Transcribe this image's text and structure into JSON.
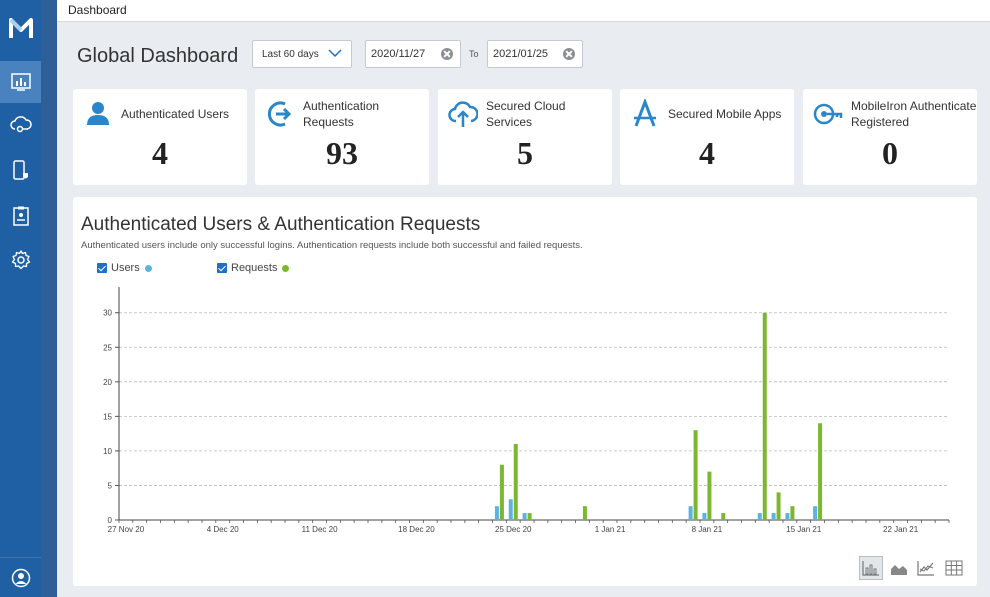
{
  "topbar": {
    "breadcrumb": "Dashboard"
  },
  "header": {
    "title": "Global Dashboard",
    "range_label": "Last 60 days",
    "date_from": "2020/11/27",
    "to_label": "To",
    "date_to": "2021/01/25"
  },
  "sidebar": {
    "items": [
      {
        "name": "dashboard",
        "icon": "bar-chart-icon",
        "active": true
      },
      {
        "name": "cloud-access",
        "icon": "cloud-key-icon"
      },
      {
        "name": "devices",
        "icon": "mobile-shield-icon"
      },
      {
        "name": "policies",
        "icon": "clipboard-icon"
      },
      {
        "name": "settings",
        "icon": "gear-icon"
      }
    ],
    "bottom": {
      "icon": "user-icon"
    }
  },
  "cards": [
    {
      "label": "Authenticated Users",
      "value": "4",
      "icon": "user-icon"
    },
    {
      "label": "Authentication Requests",
      "value": "93",
      "icon": "login-arrow-icon"
    },
    {
      "label": "Secured Cloud Services",
      "value": "5",
      "icon": "cloud-upload-icon"
    },
    {
      "label": "Secured Mobile Apps",
      "value": "4",
      "icon": "app-store-icon"
    },
    {
      "label": "MobileIron Authenticate Registered",
      "value": "0",
      "icon": "key-icon"
    }
  ],
  "panel": {
    "title": "Authenticated Users & Authentication Requests",
    "subtitle": "Authenticated users include only successful logins. Authentication requests include both successful and failed requests.",
    "legend": [
      {
        "label": "Users",
        "color": "#5ab4e0"
      },
      {
        "label": "Requests",
        "color": "#7cb82f"
      }
    ],
    "view_buttons": [
      "bar-chart-view-icon",
      "area-chart-view-icon",
      "line-chart-view-icon",
      "table-view-icon"
    ]
  },
  "chart_data": {
    "type": "bar",
    "x_ticks": [
      "27 Nov 20",
      "4 Dec 20",
      "11 Dec 20",
      "18 Dec 20",
      "25 Dec 20",
      "1 Jan 21",
      "8 Jan 21",
      "15 Jan 21",
      "22 Jan 21"
    ],
    "y_ticks": [
      0,
      5,
      10,
      15,
      20,
      25,
      30
    ],
    "ylim": [
      0,
      33
    ],
    "grid": true,
    "start_date": "2020-11-27",
    "days": 60,
    "series": [
      {
        "name": "Users",
        "color": "#5ab4e0",
        "points": [
          [
            "2020-12-24",
            2
          ],
          [
            "2020-12-25",
            3
          ],
          [
            "2020-12-26",
            1
          ],
          [
            "2021-01-07",
            2
          ],
          [
            "2021-01-08",
            1
          ],
          [
            "2021-01-12",
            1
          ],
          [
            "2021-01-13",
            1
          ],
          [
            "2021-01-14",
            1
          ],
          [
            "2021-01-16",
            2
          ]
        ]
      },
      {
        "name": "Requests",
        "color": "#7cb82f",
        "points": [
          [
            "2020-12-24",
            8
          ],
          [
            "2020-12-25",
            11
          ],
          [
            "2020-12-26",
            1
          ],
          [
            "2020-12-30",
            2
          ],
          [
            "2021-01-07",
            13
          ],
          [
            "2021-01-08",
            7
          ],
          [
            "2021-01-09",
            1
          ],
          [
            "2021-01-12",
            30
          ],
          [
            "2021-01-13",
            4
          ],
          [
            "2021-01-14",
            2
          ],
          [
            "2021-01-16",
            14
          ]
        ]
      }
    ]
  }
}
